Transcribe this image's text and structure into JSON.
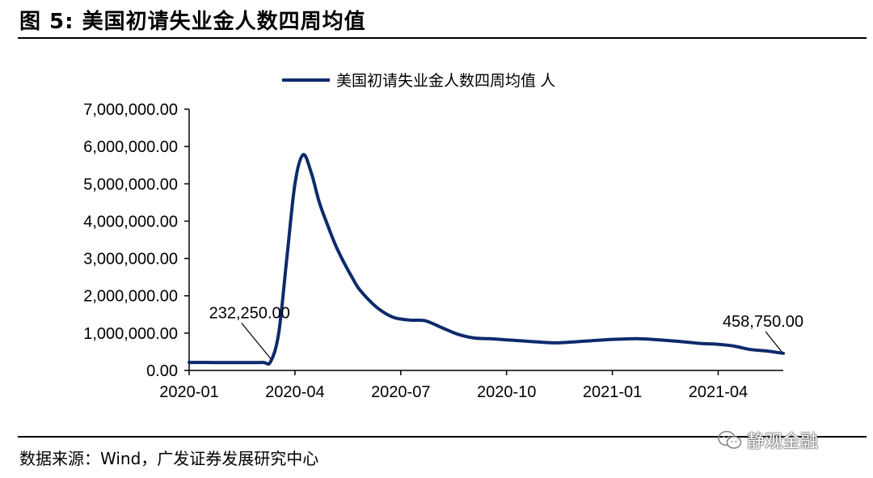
{
  "figure_title": "图 5:  美国初请失业金人数四周均值",
  "source_note": "数据来源：Wind，广发证券发展研究中心",
  "watermark": "静观金融",
  "colors": {
    "series": "#0d2a6b",
    "axis": "#000000",
    "text": "#000000"
  },
  "chart_data": {
    "type": "line",
    "title": "",
    "xlabel": "",
    "ylabel": "",
    "grid": false,
    "legend_position": "top",
    "ylim": [
      0,
      7000000
    ],
    "yticks": [
      0,
      1000000,
      2000000,
      3000000,
      4000000,
      5000000,
      6000000,
      7000000
    ],
    "ytick_labels": [
      "0.00",
      "1,000,000.00",
      "2,000,000.00",
      "3,000,000.00",
      "4,000,000.00",
      "5,000,000.00",
      "6,000,000.00",
      "7,000,000.00"
    ],
    "xlim": [
      "2020-01-04",
      "2021-05-29"
    ],
    "xticks": [
      "2020-01-04",
      "2020-04-04",
      "2020-07-04",
      "2020-10-03",
      "2021-01-02",
      "2021-04-03"
    ],
    "xtick_labels": [
      "2020-01",
      "2020-04",
      "2020-07",
      "2020-10",
      "2021-01",
      "2021-04"
    ],
    "series": [
      {
        "name": "美国初请失业金人数四周均值 人",
        "x": [
          "2020-01-04",
          "2020-01-25",
          "2020-02-15",
          "2020-03-07",
          "2020-03-14",
          "2020-03-21",
          "2020-03-28",
          "2020-04-04",
          "2020-04-11",
          "2020-04-18",
          "2020-04-25",
          "2020-05-02",
          "2020-05-09",
          "2020-05-16",
          "2020-05-23",
          "2020-05-30",
          "2020-06-13",
          "2020-06-27",
          "2020-07-11",
          "2020-07-25",
          "2020-08-08",
          "2020-08-22",
          "2020-09-05",
          "2020-09-19",
          "2020-10-03",
          "2020-10-17",
          "2020-10-31",
          "2020-11-14",
          "2020-11-28",
          "2020-12-12",
          "2020-12-26",
          "2021-01-09",
          "2021-01-23",
          "2021-02-06",
          "2021-02-20",
          "2021-03-06",
          "2021-03-20",
          "2021-04-03",
          "2021-04-17",
          "2021-05-01",
          "2021-05-15",
          "2021-05-29"
        ],
        "values": [
          215000,
          212000,
          210000,
          215000,
          232250,
          1000000,
          3000000,
          5000000,
          5780000,
          5300000,
          4500000,
          3900000,
          3350000,
          2900000,
          2500000,
          2150000,
          1700000,
          1430000,
          1350000,
          1330000,
          1150000,
          970000,
          870000,
          850000,
          820000,
          790000,
          760000,
          740000,
          760000,
          790000,
          820000,
          840000,
          850000,
          830000,
          800000,
          760000,
          720000,
          700000,
          650000,
          560000,
          520000,
          458750
        ]
      }
    ],
    "annotations": [
      {
        "text": "232,250.00",
        "x": "2020-03-14",
        "y": 232250
      },
      {
        "text": "458,750.00",
        "x": "2021-05-29",
        "y": 458750
      }
    ]
  }
}
